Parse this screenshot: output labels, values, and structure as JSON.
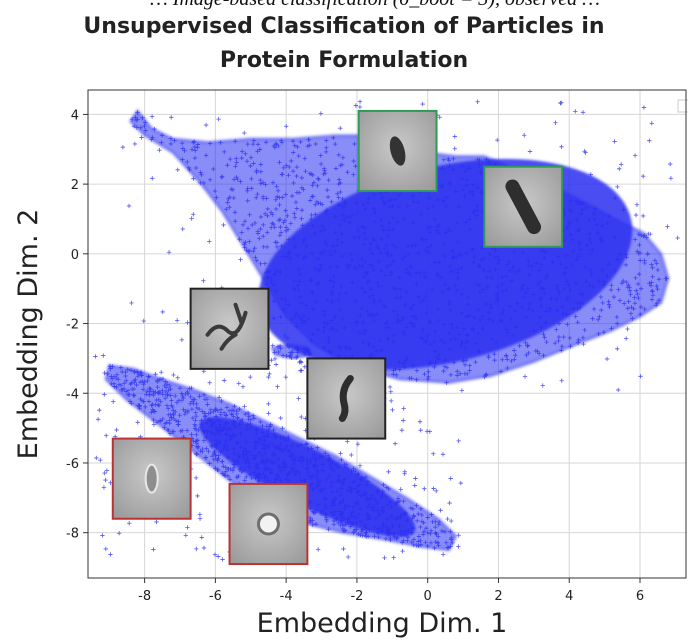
{
  "caption_fragment": "… Image-based classification (σ_boot = 3), observed …",
  "chart_data": {
    "type": "scatter",
    "title": "Unsupervised Classification of Particles in Protein Formulation",
    "title_lines": [
      "Unsupervised Classification of Particles in",
      "Protein Formulation"
    ],
    "xlabel": "Embedding Dim. 1",
    "ylabel": "Embedding Dim. 2",
    "xlim": [
      -9.6,
      7.3
    ],
    "ylim": [
      -9.3,
      4.7
    ],
    "xticks": [
      -8,
      -6,
      -4,
      -2,
      0,
      2,
      4,
      6
    ],
    "yticks": [
      -8,
      -6,
      -4,
      -2,
      0,
      2,
      4
    ],
    "grid": true,
    "marker": "+",
    "point_color": "#2a2ef0",
    "clusters": [
      {
        "description": "upper cluster",
        "outline": [
          [
            -8.2,
            4.1
          ],
          [
            -7.8,
            3.6
          ],
          [
            -7.2,
            3.3
          ],
          [
            -6.2,
            3.2
          ],
          [
            -5,
            3.3
          ],
          [
            -3.8,
            3.3
          ],
          [
            -2.6,
            3.4
          ],
          [
            -1.6,
            3.4
          ],
          [
            -0.8,
            3.2
          ],
          [
            0,
            2.9
          ],
          [
            0.8,
            2.8
          ],
          [
            1.6,
            2.8
          ],
          [
            2.5,
            2.4
          ],
          [
            3.4,
            2.0
          ],
          [
            4.4,
            1.5
          ],
          [
            5.3,
            1.0
          ],
          [
            6.1,
            0.6
          ],
          [
            6.6,
            0
          ],
          [
            6.8,
            -0.7
          ],
          [
            6.6,
            -1.4
          ],
          [
            6.0,
            -1.8
          ],
          [
            5.2,
            -2.2
          ],
          [
            4.2,
            -2.6
          ],
          [
            3.0,
            -3.1
          ],
          [
            1.8,
            -3.5
          ],
          [
            0.6,
            -3.7
          ],
          [
            -0.8,
            -3.6
          ],
          [
            -2.2,
            -3.2
          ],
          [
            -3.2,
            -2.6
          ],
          [
            -4.0,
            -1.8
          ],
          [
            -4.6,
            -0.8
          ],
          [
            -5.2,
            0.2
          ],
          [
            -5.8,
            1.2
          ],
          [
            -6.4,
            2.0
          ],
          [
            -7.2,
            2.9
          ],
          [
            -8.0,
            3.4
          ],
          [
            -8.4,
            3.8
          ]
        ],
        "core": {
          "cx": 0.5,
          "cy": -0.3,
          "rx": 5.4,
          "ry": 2.8,
          "angle": -14
        }
      },
      {
        "description": "lower cluster",
        "outline": [
          [
            -9.0,
            -3.2
          ],
          [
            -8.3,
            -3.3
          ],
          [
            -7.5,
            -3.6
          ],
          [
            -6.6,
            -3.9
          ],
          [
            -5.6,
            -4.3
          ],
          [
            -4.6,
            -4.8
          ],
          [
            -3.6,
            -5.3
          ],
          [
            -2.6,
            -5.8
          ],
          [
            -1.6,
            -6.4
          ],
          [
            -0.6,
            -7.0
          ],
          [
            0.3,
            -7.6
          ],
          [
            0.8,
            -8.1
          ],
          [
            0.6,
            -8.5
          ],
          [
            -0.2,
            -8.4
          ],
          [
            -1.2,
            -8.2
          ],
          [
            -2.4,
            -8.0
          ],
          [
            -3.6,
            -7.7
          ],
          [
            -4.6,
            -7.2
          ],
          [
            -5.6,
            -6.5
          ],
          [
            -6.6,
            -5.7
          ],
          [
            -7.6,
            -4.9
          ],
          [
            -8.5,
            -4.2
          ],
          [
            -9.1,
            -3.6
          ]
        ],
        "core": {
          "cx": -3.4,
          "cy": -6.4,
          "rx": 3.4,
          "ry": 0.8,
          "angle": 27
        }
      },
      {
        "description": "small blob",
        "outline": [
          [
            -4.4,
            -2.7
          ],
          [
            -3.9,
            -2.6
          ],
          [
            -3.4,
            -2.7
          ],
          [
            -3.3,
            -2.9
          ],
          [
            -3.8,
            -3.0
          ],
          [
            -4.3,
            -2.9
          ]
        ]
      }
    ],
    "inset_thumbnails": [
      {
        "border": "#2e9a55",
        "x": [
          -1.95,
          0.25
        ],
        "y": [
          1.8,
          4.1
        ],
        "shape": "blob"
      },
      {
        "border": "#2e9a55",
        "x": [
          1.6,
          3.8
        ],
        "y": [
          0.2,
          2.5
        ],
        "shape": "rod"
      },
      {
        "border": "#222222",
        "x": [
          -6.7,
          -4.5
        ],
        "y": [
          -3.3,
          -1.0
        ],
        "shape": "fibers"
      },
      {
        "border": "#222222",
        "x": [
          -3.4,
          -1.2
        ],
        "y": [
          -5.3,
          -3.0
        ],
        "shape": "curved"
      },
      {
        "border": "#b83333",
        "x": [
          -8.9,
          -6.7
        ],
        "y": [
          -7.6,
          -5.3
        ],
        "shape": "faint"
      },
      {
        "border": "#b83333",
        "x": [
          -5.6,
          -3.4
        ],
        "y": [
          -8.9,
          -6.6
        ],
        "shape": "ring"
      }
    ]
  }
}
